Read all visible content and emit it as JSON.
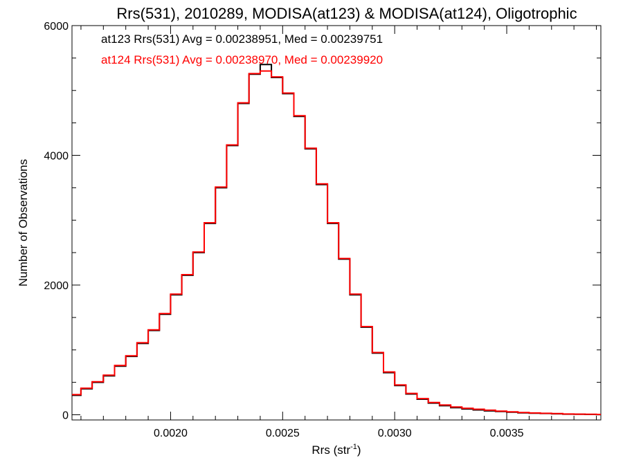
{
  "chart_data": {
    "type": "line",
    "title": "Rrs(531), 2010289, MODISA(at123) & MODISA(at124), Oligotrophic",
    "xlabel": "Rrs (str",
    "xlabel_superscript": "-1",
    "xlabel_suffix": ")",
    "ylabel": "Number of Observations",
    "xlim": [
      0.00156,
      0.00392
    ],
    "ylim": [
      -80,
      6000
    ],
    "x_ticks": [
      {
        "value": 0.002,
        "label": "0.0020"
      },
      {
        "value": 0.0025,
        "label": "0.0025"
      },
      {
        "value": 0.003,
        "label": "0.0030"
      },
      {
        "value": 0.0035,
        "label": "0.0035"
      }
    ],
    "y_ticks": [
      {
        "value": 0,
        "label": "0"
      },
      {
        "value": 2000,
        "label": "2000"
      },
      {
        "value": 4000,
        "label": "4000"
      },
      {
        "value": 6000,
        "label": "6000"
      }
    ],
    "grid": false,
    "annotations": [
      {
        "text": "at123 Rrs(531) Avg = 0.00238951, Med = 0.00239751",
        "color": "#000000"
      },
      {
        "text": "at124 Rrs(531) Avg = 0.00238970, Med = 0.00239920",
        "color": "#ff0000"
      }
    ],
    "series": [
      {
        "color": "#000000",
        "step": true,
        "x": [
          0.00156,
          0.0016,
          0.00165,
          0.0017,
          0.00175,
          0.0018,
          0.00185,
          0.0019,
          0.00195,
          0.002,
          0.00205,
          0.0021,
          0.00215,
          0.0022,
          0.00225,
          0.0023,
          0.00235,
          0.0024,
          0.00245,
          0.0025,
          0.00255,
          0.0026,
          0.00265,
          0.0027,
          0.00275,
          0.0028,
          0.00285,
          0.0029,
          0.00295,
          0.003,
          0.00305,
          0.0031,
          0.00315,
          0.0032,
          0.00325,
          0.0033,
          0.00335,
          0.0034,
          0.00345,
          0.0035,
          0.00355,
          0.0036,
          0.00365,
          0.0037,
          0.00375,
          0.0038,
          0.00385,
          0.0039
        ],
        "y": [
          300,
          400,
          500,
          600,
          750,
          900,
          1100,
          1300,
          1550,
          1850,
          2150,
          2500,
          2950,
          3500,
          4150,
          4800,
          5250,
          5400,
          5200,
          4950,
          4600,
          4100,
          3550,
          2950,
          2400,
          1850,
          1350,
          950,
          650,
          450,
          320,
          240,
          180,
          140,
          110,
          90,
          75,
          60,
          50,
          40,
          30,
          25,
          20,
          15,
          10,
          8,
          5,
          3
        ]
      },
      {
        "color": "#ff0000",
        "step": true,
        "x": [
          0.00156,
          0.0016,
          0.00165,
          0.0017,
          0.00175,
          0.0018,
          0.00185,
          0.0019,
          0.00195,
          0.002,
          0.00205,
          0.0021,
          0.00215,
          0.0022,
          0.00225,
          0.0023,
          0.00235,
          0.0024,
          0.00245,
          0.0025,
          0.00255,
          0.0026,
          0.00265,
          0.0027,
          0.00275,
          0.0028,
          0.00285,
          0.0029,
          0.00295,
          0.003,
          0.00305,
          0.0031,
          0.00315,
          0.0032,
          0.00325,
          0.0033,
          0.00335,
          0.0034,
          0.00345,
          0.0035,
          0.00355,
          0.0036,
          0.00365,
          0.0037,
          0.00375,
          0.0038,
          0.00385,
          0.0039
        ],
        "y": [
          310,
          410,
          510,
          610,
          760,
          910,
          1110,
          1310,
          1560,
          1860,
          2160,
          2510,
          2960,
          3510,
          4160,
          4810,
          5260,
          5300,
          5210,
          4960,
          4610,
          4110,
          3560,
          2960,
          2410,
          1860,
          1360,
          960,
          660,
          460,
          330,
          250,
          190,
          150,
          120,
          100,
          85,
          70,
          55,
          45,
          35,
          28,
          22,
          18,
          12,
          10,
          7,
          5
        ]
      }
    ]
  }
}
